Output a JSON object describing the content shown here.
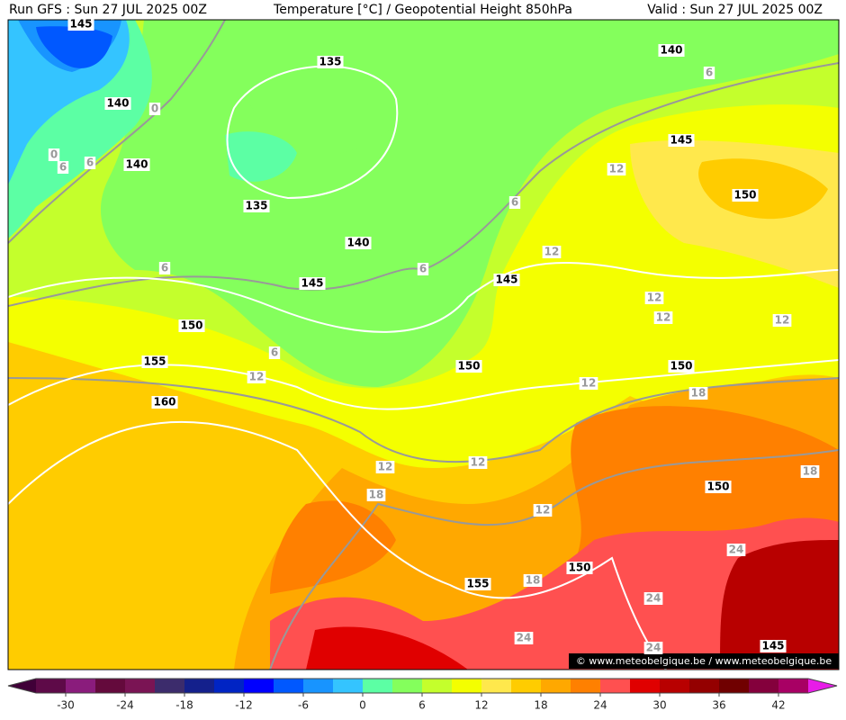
{
  "header": {
    "left": "Run GFS : Sun 27 JUL 2025 00Z",
    "center": "Temperature [°C] / Geopotential Height 850hPa",
    "right": "Valid : Sun 27 JUL 2025 00Z"
  },
  "watermark": "© www.meteobelgique.be / www.meteobelgique.be",
  "height_labels": [
    145,
    140,
    140,
    135,
    135,
    140,
    145,
    150,
    155,
    160,
    140,
    145,
    150,
    145,
    150,
    150,
    150,
    150,
    155,
    145
  ],
  "temperature_labels": [
    0,
    0,
    6,
    6,
    6,
    6,
    6,
    6,
    6,
    12,
    12,
    12,
    12,
    12,
    12,
    12,
    12,
    12,
    12,
    18,
    18,
    18,
    18,
    24,
    24,
    24,
    24
  ],
  "colorbar": {
    "ticks": [
      -30,
      -24,
      -18,
      -12,
      -6,
      0,
      6,
      12,
      18,
      24,
      30,
      36,
      42
    ],
    "colors": [
      "#5e0a48",
      "#8a1c7c",
      "#640a3c",
      "#7a1454",
      "#3c2c6c",
      "#14208c",
      "#0024c4",
      "#0000ff",
      "#0058ff",
      "#1894ff",
      "#34c4ff",
      "#5cffa4",
      "#84ff5c",
      "#c4ff2c",
      "#f4ff00",
      "#ffe84c",
      "#ffcc00",
      "#ffa800",
      "#ff8000",
      "#ff5050",
      "#e00000",
      "#b80000",
      "#940000",
      "#700000",
      "#84003c",
      "#a80064"
    ],
    "under_color": "#400038",
    "over_color": "#e81ce8"
  }
}
